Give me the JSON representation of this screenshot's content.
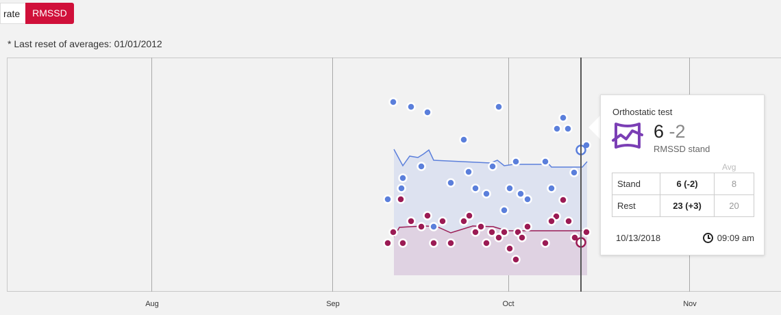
{
  "tabs": {
    "rate_label": "rate",
    "rmssd_label": "RMSSD"
  },
  "note": "* Last reset of averages: 01/01/2012",
  "colors": {
    "accent": "#d0103a",
    "stand": "#5b7fdb",
    "rest": "#9b1b54"
  },
  "tooltip": {
    "title": "Orthostatic test",
    "icon": "orthostatic-test-icon",
    "value": "6",
    "delta": "-2",
    "subtitle": "RMSSD stand",
    "avg_header": "Avg",
    "rows": [
      {
        "label": "Stand",
        "value": "6 (-2)",
        "avg": "8"
      },
      {
        "label": "Rest",
        "value": "23 (+3)",
        "avg": "20"
      }
    ],
    "date": "10/13/2018",
    "time": "09:09 am",
    "clock_icon": "clock-icon"
  },
  "chart_data": {
    "type": "scatter",
    "x_axis_labels": [
      "Aug",
      "Sep",
      "Oct",
      "Nov"
    ],
    "series": [
      {
        "name": "Stand",
        "color": "#5b7fdb"
      },
      {
        "name": "Rest",
        "color": "#9b1b54"
      }
    ]
  }
}
